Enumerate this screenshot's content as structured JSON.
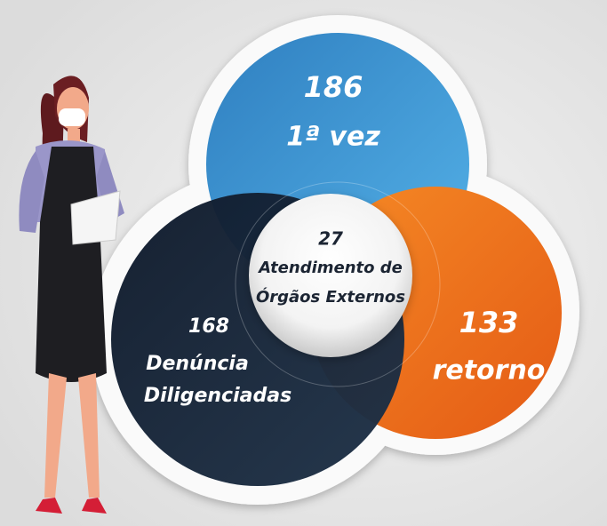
{
  "circles": [
    {
      "value": 186,
      "lines": [
        "1ª vez"
      ]
    },
    {
      "value": 133,
      "lines": [
        "retorno"
      ]
    },
    {
      "value": 168,
      "lines": [
        "Denúncia",
        "Diligenciadas"
      ]
    },
    {
      "value": 27,
      "lines": [
        "Atendimento de",
        "Órgãos Externos"
      ]
    }
  ]
}
